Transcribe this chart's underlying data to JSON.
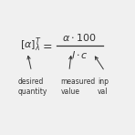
{
  "bg_color": "#f0f0f0",
  "text_color": "#333333",
  "font_size_formula": 8,
  "font_size_label": 5.5,
  "label1": "desired\nquantity",
  "label2": "measured\nvalue",
  "label3": "inp\nval"
}
